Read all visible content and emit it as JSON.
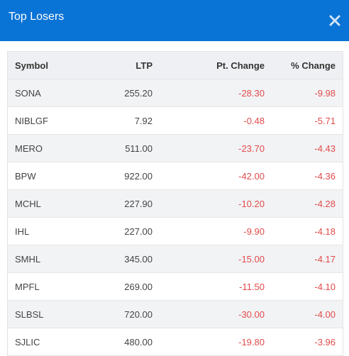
{
  "modal": {
    "title": "Top Losers"
  },
  "table": {
    "headers": [
      "Symbol",
      "LTP",
      "Pt. Change",
      "% Change"
    ],
    "rows": [
      {
        "symbol": "SONA",
        "ltp": "255.20",
        "pt_change": "-28.30",
        "pct_change": "-9.98"
      },
      {
        "symbol": "NIBLGF",
        "ltp": "7.92",
        "pt_change": "-0.48",
        "pct_change": "-5.71"
      },
      {
        "symbol": "MERO",
        "ltp": "511.00",
        "pt_change": "-23.70",
        "pct_change": "-4.43"
      },
      {
        "symbol": "BPW",
        "ltp": "922.00",
        "pt_change": "-42.00",
        "pct_change": "-4.36"
      },
      {
        "symbol": "MCHL",
        "ltp": "227.90",
        "pt_change": "-10.20",
        "pct_change": "-4.28"
      },
      {
        "symbol": "IHL",
        "ltp": "227.00",
        "pt_change": "-9.90",
        "pct_change": "-4.18"
      },
      {
        "symbol": "SMHL",
        "ltp": "345.00",
        "pt_change": "-15.00",
        "pct_change": "-4.17"
      },
      {
        "symbol": "MPFL",
        "ltp": "269.00",
        "pt_change": "-11.50",
        "pct_change": "-4.10"
      },
      {
        "symbol": "SLBSL",
        "ltp": "720.00",
        "pt_change": "-30.00",
        "pct_change": "-4.00"
      },
      {
        "symbol": "SJLIC",
        "ltp": "480.00",
        "pt_change": "-19.80",
        "pct_change": "-3.96"
      }
    ]
  },
  "colors": {
    "header_bg": "#0a73d6",
    "negative": "#e24b4b",
    "stripe": "#f2f3f5"
  },
  "icons": {
    "close": "close-icon"
  }
}
